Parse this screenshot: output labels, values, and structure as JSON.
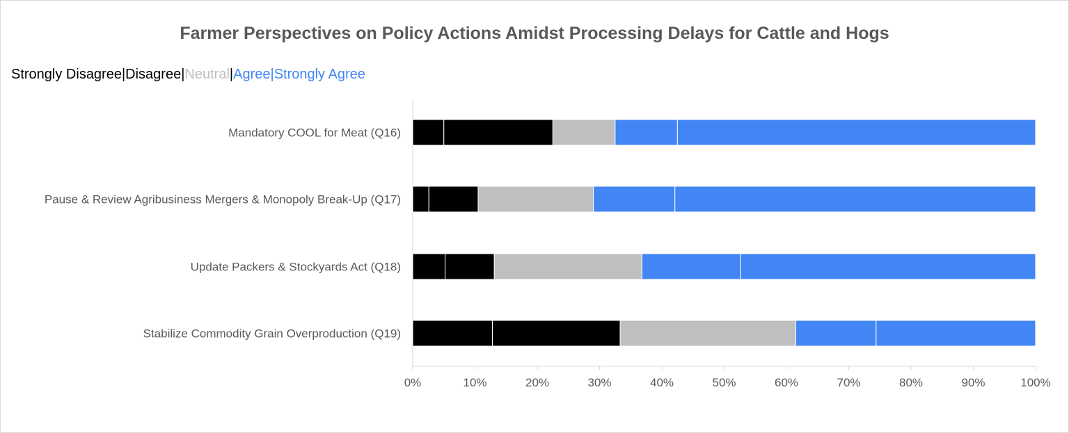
{
  "chart_data": {
    "type": "bar",
    "orientation": "horizontal",
    "stacked": true,
    "title": "Farmer Perspectives on Policy Actions Amidst Processing Delays for Cattle and Hogs",
    "legend_text": [
      {
        "text": "Strongly Disagree",
        "style": "sd"
      },
      {
        "text": "|",
        "style": "sd"
      },
      {
        "text": "Disagree",
        "style": "sd"
      },
      {
        "text": "|",
        "style": "sd"
      },
      {
        "text": "Neutral",
        "style": "neutral"
      },
      {
        "text": "|",
        "style": "sd"
      },
      {
        "text": "Agree",
        "style": "agree"
      },
      {
        "text": "|",
        "style": "agree"
      },
      {
        "text": "Strongly Agree",
        "style": "agree"
      }
    ],
    "legend_placement": "top-left",
    "categories": [
      "Mandatory COOL for Meat (Q16)",
      "Pause & Review Agribusiness Mergers & Monopoly Break-Up (Q17)",
      "Update Packers & Stockyards Act (Q18)",
      "Stabilize Commodity Grain Overproduction (Q19)"
    ],
    "series": [
      {
        "key": "strongly_disagree",
        "color": "#000000",
        "values": [
          5.0,
          2.6,
          5.2,
          12.8
        ]
      },
      {
        "key": "disagree",
        "color": "#000000",
        "values": [
          17.5,
          7.9,
          7.9,
          20.5
        ]
      },
      {
        "key": "neutral",
        "color": "#bfbfbf",
        "values": [
          10.0,
          18.5,
          23.7,
          28.2
        ]
      },
      {
        "key": "agree",
        "color": "#4285f4",
        "values": [
          10.0,
          13.1,
          15.8,
          12.9
        ]
      },
      {
        "key": "strongly_agree",
        "color": "#4285f4",
        "values": [
          57.5,
          57.9,
          47.4,
          25.6
        ]
      }
    ],
    "xlim": [
      0,
      100
    ],
    "x_ticks": [
      "0%",
      "10%",
      "20%",
      "30%",
      "40%",
      "50%",
      "60%",
      "70%",
      "80%",
      "90%",
      "100%"
    ],
    "grid": false
  }
}
